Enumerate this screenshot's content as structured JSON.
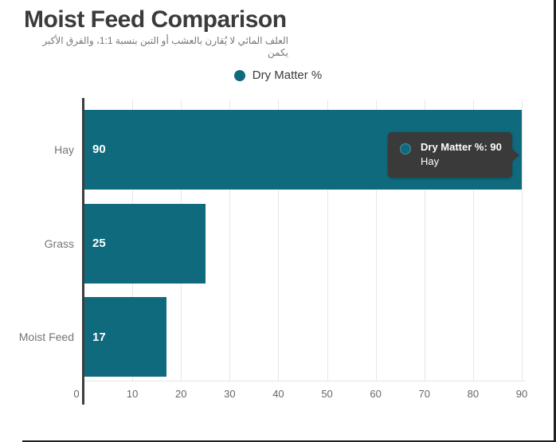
{
  "header": {
    "title": "Moist Feed Comparison",
    "subtitle_ar": "العلف المائي لا يُقارن بالعشب أو التبن بنسبة 1:1، والفرق الأكبر يكمن"
  },
  "legend": {
    "label": "Dry Matter %"
  },
  "chart_data": {
    "type": "bar",
    "orientation": "horizontal",
    "title": "Moist Feed Comparison",
    "subtitle": "العلف المائي لا يُقارن بالعشب أو التبن بنسبة 1:1، والفرق الأكبر يكمن",
    "categories": [
      "Hay",
      "Grass",
      "Moist Feed"
    ],
    "series": [
      {
        "name": "Dry Matter %",
        "values": [
          90,
          25,
          17
        ],
        "color": "#0e6a7c"
      }
    ],
    "value_labels": [
      "90",
      "25",
      "17"
    ],
    "xlabel": "",
    "ylabel": "",
    "xlim": [
      0,
      92
    ],
    "x_ticks": [
      0,
      10,
      20,
      30,
      40,
      50,
      60,
      70,
      80,
      90
    ],
    "grid": true,
    "legend_position": "top"
  },
  "tooltip": {
    "line1": "Dry Matter %: 90",
    "line2": "Hay"
  },
  "colors": {
    "bar": "#0e6a7c",
    "tooltip_bg": "#3a3a3a",
    "title": "#3b3b3b",
    "muted": "#757575",
    "tick": "#666666",
    "grid": "#e6e6e6",
    "axis": "#3d3d3d",
    "frame": "#1f1f1f",
    "value_label": "#ffffff"
  }
}
